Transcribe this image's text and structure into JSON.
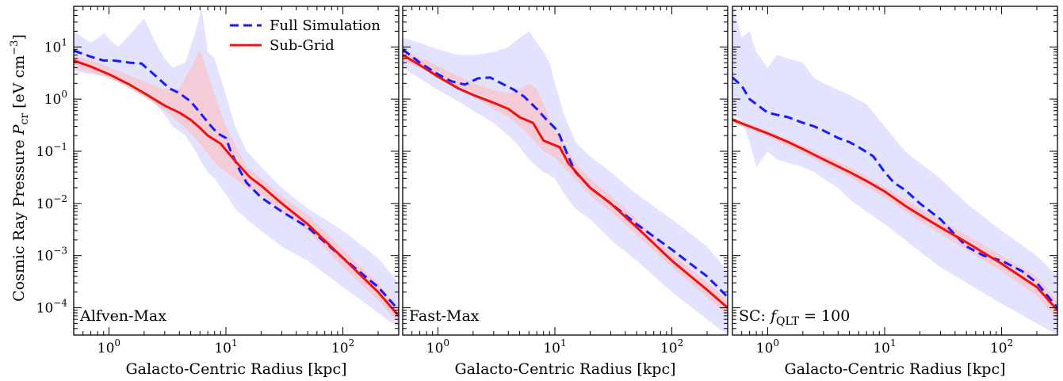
{
  "ylabel": "Cosmic Ray Pressure P_cr [eV cm^-3]",
  "ylabel_parts": {
    "pre": "Cosmic Ray Pressure ",
    "sym": "P",
    "sub": "cr",
    "units_open": " [eV cm",
    "sup": "−3",
    "units_close": "]"
  },
  "xlabel": "Galacto-Centric Radius [kpc]",
  "colors": {
    "full": "#1a1aff",
    "subgrid": "#ee1111",
    "full_band": "#ccccff",
    "subgrid_band": "#ffbcbc"
  },
  "legend": {
    "full": "Full Simulation",
    "subgrid": "Sub-Grid",
    "placement": "upper-left of first panel"
  },
  "chart_data": [
    {
      "type": "line",
      "panel_label": "Alfven-Max",
      "xscale": "log",
      "yscale": "log",
      "xlim": [
        0.5,
        300
      ],
      "ylim": [
        3e-05,
        60
      ],
      "series": [
        {
          "name": "Full Simulation",
          "style": "dashed",
          "x": [
            0.5,
            0.7,
            0.9,
            1.1,
            1.5,
            1.9,
            2.5,
            3.3,
            4.0,
            5.0,
            6.0,
            7.5,
            8.5,
            10,
            11,
            13,
            15,
            20,
            30,
            50,
            100,
            200,
            300
          ],
          "y": [
            8.5,
            6.5,
            5.5,
            5.5,
            5.0,
            4.8,
            2.8,
            1.6,
            1.3,
            0.9,
            0.55,
            0.3,
            0.22,
            0.18,
            0.1,
            0.045,
            0.025,
            0.013,
            0.007,
            0.0035,
            0.0009,
            0.00025,
            9e-05
          ]
        },
        {
          "name": "Sub-Grid",
          "style": "solid",
          "x": [
            0.5,
            0.7,
            1.0,
            1.5,
            2.0,
            3.0,
            4.0,
            5.0,
            6.0,
            7.0,
            9.0,
            12,
            16,
            20,
            30,
            50,
            100,
            200,
            300
          ],
          "y": [
            5.5,
            4.2,
            3.0,
            1.9,
            1.3,
            0.75,
            0.55,
            0.4,
            0.28,
            0.2,
            0.14,
            0.065,
            0.032,
            0.022,
            0.01,
            0.004,
            0.0009,
            0.0002,
            7e-05
          ]
        }
      ],
      "bands": [
        {
          "series": "Full Simulation",
          "x": [
            0.5,
            0.7,
            0.9,
            1.2,
            1.6,
            2.0,
            2.5,
            3.0,
            3.5,
            4.5,
            5.5,
            6.2,
            7.0,
            8.0,
            10,
            12,
            15,
            20,
            30,
            50,
            100,
            200,
            300
          ],
          "upper": [
            20,
            12,
            18,
            10,
            20,
            35,
            12,
            6,
            4,
            5,
            20,
            55,
            8,
            6,
            1.2,
            0.3,
            0.1,
            0.05,
            0.02,
            0.008,
            0.003,
            0.0009,
            0.0003
          ],
          "lower": [
            3.5,
            3,
            2.8,
            2.5,
            2,
            1.5,
            0.8,
            0.5,
            0.3,
            0.2,
            0.1,
            0.06,
            0.04,
            0.03,
            0.015,
            0.008,
            0.005,
            0.003,
            0.0015,
            0.0008,
            0.00025,
            8e-05,
            4e-05
          ]
        },
        {
          "series": "Sub-Grid",
          "x": [
            0.5,
            0.8,
            1.2,
            2,
            3,
            4,
            5,
            6,
            7,
            8,
            10,
            15,
            20,
            30,
            50,
            100,
            200,
            300
          ],
          "upper": [
            7,
            5,
            3.5,
            2.2,
            1.5,
            1.6,
            4,
            9,
            3,
            1.2,
            0.3,
            0.05,
            0.03,
            0.014,
            0.006,
            0.0013,
            0.0003,
            0.0001
          ],
          "lower": [
            4,
            3,
            2.1,
            1.1,
            0.6,
            0.35,
            0.22,
            0.14,
            0.09,
            0.06,
            0.04,
            0.02,
            0.015,
            0.007,
            0.003,
            0.0006,
            0.00014,
            5e-05
          ]
        }
      ]
    },
    {
      "type": "line",
      "panel_label": "Fast-Max",
      "xscale": "log",
      "yscale": "log",
      "xlim": [
        0.5,
        300
      ],
      "ylim": [
        3e-05,
        60
      ],
      "series": [
        {
          "name": "Full Simulation",
          "style": "dashed",
          "x": [
            0.5,
            0.7,
            1.0,
            1.3,
            1.7,
            2.2,
            2.8,
            3.5,
            4.5,
            5.5,
            7,
            8.5,
            10,
            11,
            13,
            15,
            20,
            30,
            50,
            100,
            200,
            300
          ],
          "y": [
            9,
            5,
            3.0,
            2.2,
            1.9,
            2.5,
            2.6,
            2.0,
            1.5,
            1.1,
            0.65,
            0.4,
            0.28,
            0.2,
            0.08,
            0.04,
            0.02,
            0.01,
            0.004,
            0.0013,
            0.0004,
            0.00016
          ]
        },
        {
          "name": "Sub-Grid",
          "style": "solid",
          "x": [
            0.5,
            0.7,
            1.0,
            1.5,
            2.0,
            3.0,
            4.0,
            5.0,
            6.5,
            8,
            11,
            13,
            16,
            20,
            30,
            50,
            100,
            200,
            300
          ],
          "y": [
            7,
            4.5,
            2.7,
            1.6,
            1.2,
            0.85,
            0.65,
            0.45,
            0.35,
            0.16,
            0.12,
            0.06,
            0.035,
            0.02,
            0.01,
            0.0035,
            0.0008,
            0.00022,
            0.0001
          ]
        }
      ],
      "bands": [
        {
          "series": "Full Simulation",
          "x": [
            0.5,
            0.7,
            1.0,
            1.5,
            2.0,
            3.0,
            4.0,
            5.0,
            6.0,
            7.0,
            8.0,
            9.0,
            10,
            12,
            15,
            20,
            30,
            50,
            100,
            200,
            300
          ],
          "upper": [
            15,
            12,
            9,
            7,
            7,
            8,
            10,
            15,
            20,
            12,
            8,
            5,
            2,
            0.5,
            0.15,
            0.08,
            0.04,
            0.015,
            0.005,
            0.0015,
            0.0005
          ],
          "lower": [
            4,
            2.5,
            1.5,
            0.9,
            0.6,
            0.35,
            0.2,
            0.12,
            0.07,
            0.05,
            0.04,
            0.035,
            0.03,
            0.015,
            0.008,
            0.005,
            0.002,
            0.0008,
            0.0002,
            6e-05,
            3e-05
          ]
        },
        {
          "series": "Sub-Grid",
          "x": [
            0.5,
            0.8,
            1.2,
            2,
            3,
            4,
            5,
            6,
            7,
            8,
            10,
            13,
            16,
            20,
            30,
            50,
            100,
            200,
            300
          ],
          "upper": [
            8.5,
            5.5,
            3.5,
            2.0,
            1.5,
            1.3,
            1.5,
            2,
            1.6,
            0.8,
            0.25,
            0.1,
            0.05,
            0.03,
            0.014,
            0.005,
            0.0011,
            0.0003,
            0.00014
          ],
          "lower": [
            5.5,
            3.5,
            2.1,
            1.1,
            0.65,
            0.45,
            0.3,
            0.2,
            0.14,
            0.1,
            0.075,
            0.04,
            0.025,
            0.014,
            0.007,
            0.0025,
            0.0006,
            0.00016,
            7e-05
          ]
        }
      ]
    },
    {
      "type": "line",
      "panel_label": "SC: f_QLT = 100",
      "panel_label_parts": {
        "pre": "SC: ",
        "sym": "f",
        "sub": "QLT",
        "post": " = 100"
      },
      "xscale": "log",
      "yscale": "log",
      "xlim": [
        0.5,
        300
      ],
      "ylim": [
        3e-05,
        60
      ],
      "series": [
        {
          "name": "Full Simulation",
          "style": "dashed",
          "x": [
            0.5,
            0.6,
            0.7,
            0.8,
            1.0,
            1.2,
            1.5,
            2.0,
            2.5,
            3,
            4,
            5,
            6,
            8,
            10,
            12,
            15,
            20,
            30,
            40,
            50,
            70,
            100,
            150,
            200,
            300
          ],
          "y": [
            2.6,
            1.8,
            1.0,
            0.8,
            0.55,
            0.5,
            0.45,
            0.35,
            0.3,
            0.25,
            0.18,
            0.15,
            0.12,
            0.08,
            0.04,
            0.025,
            0.018,
            0.01,
            0.005,
            0.0025,
            0.0015,
            0.001,
            0.0008,
            0.0005,
            0.0003,
            0.0001
          ]
        },
        {
          "name": "Sub-Grid",
          "style": "solid",
          "x": [
            0.5,
            0.7,
            1.0,
            1.5,
            2.0,
            3.0,
            5.0,
            7.0,
            10,
            15,
            20,
            30,
            50,
            100,
            200,
            300
          ],
          "y": [
            0.4,
            0.3,
            0.22,
            0.15,
            0.11,
            0.07,
            0.04,
            0.027,
            0.017,
            0.009,
            0.006,
            0.0035,
            0.0018,
            0.0007,
            0.00025,
            9e-05
          ]
        }
      ],
      "bands": [
        {
          "series": "Full Simulation",
          "x": [
            0.5,
            0.6,
            0.7,
            0.8,
            1.0,
            1.2,
            1.5,
            2.0,
            2.5,
            3,
            4,
            5,
            7,
            10,
            15,
            20,
            30,
            50,
            100,
            200,
            300
          ],
          "upper": [
            70,
            15,
            20,
            8,
            4,
            7,
            6,
            5,
            2.5,
            2,
            1.5,
            1.2,
            0.8,
            0.3,
            0.1,
            0.06,
            0.03,
            0.01,
            0.003,
            0.001,
            0.0004
          ],
          "lower": [
            0.5,
            0.4,
            0.15,
            0.05,
            0.1,
            0.07,
            0.06,
            0.05,
            0.04,
            0.03,
            0.02,
            0.012,
            0.007,
            0.004,
            0.002,
            0.0012,
            0.0006,
            0.0003,
            0.00012,
            5e-05,
            3e-05
          ]
        },
        {
          "series": "Sub-Grid",
          "x": [
            0.5,
            1,
            2,
            5,
            10,
            20,
            50,
            100,
            200,
            300
          ],
          "upper": [
            0.45,
            0.25,
            0.13,
            0.05,
            0.021,
            0.008,
            0.0025,
            0.001,
            0.0004,
            0.00013
          ],
          "lower": [
            0.35,
            0.19,
            0.09,
            0.032,
            0.013,
            0.0045,
            0.0013,
            0.0005,
            0.00017,
            6e-05
          ]
        }
      ]
    }
  ],
  "xticks": [
    {
      "base": "10",
      "exp": "0",
      "value": 1
    },
    {
      "base": "10",
      "exp": "1",
      "value": 10
    },
    {
      "base": "10",
      "exp": "2",
      "value": 100
    }
  ],
  "yticks": [
    {
      "base": "10",
      "exp": "1",
      "value": 10
    },
    {
      "base": "10",
      "exp": "0",
      "value": 1
    },
    {
      "base": "10",
      "exp": "−1",
      "value": 0.1
    },
    {
      "base": "10",
      "exp": "−2",
      "value": 0.01
    },
    {
      "base": "10",
      "exp": "−3",
      "value": 0.001
    },
    {
      "base": "10",
      "exp": "−4",
      "value": 0.0001
    }
  ]
}
